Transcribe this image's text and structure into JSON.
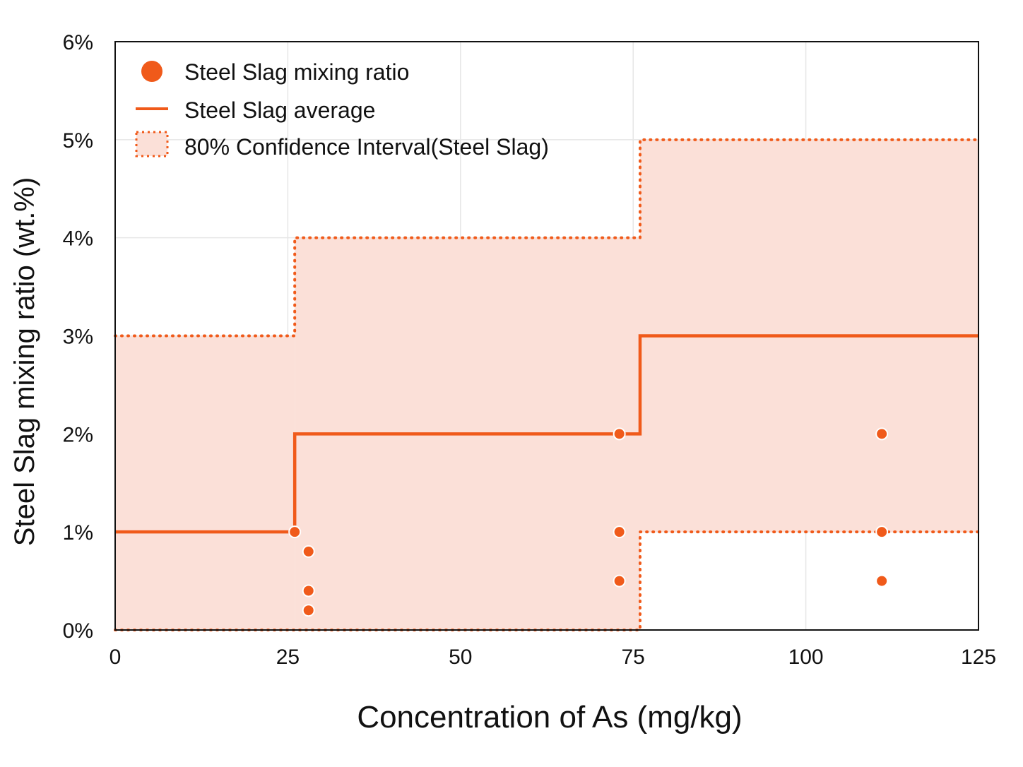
{
  "chart_data": {
    "type": "scatter",
    "xlabel": "Concentration of As (mg/kg)",
    "ylabel": "Steel Slag mixing ratio (wt.%)",
    "xlim": [
      0,
      125
    ],
    "ylim": [
      0,
      6
    ],
    "x_ticks": [
      0,
      25,
      50,
      75,
      100,
      125
    ],
    "x_tick_labels": [
      "0",
      "25",
      "50",
      "75",
      "100",
      "125"
    ],
    "y_ticks": [
      0,
      1,
      2,
      3,
      4,
      5,
      6
    ],
    "y_tick_labels": [
      "0%",
      "1%",
      "2%",
      "3%",
      "4%",
      "5%",
      "6%"
    ],
    "grid": true,
    "legend_position": "top-left",
    "legend": [
      {
        "label": "Steel Slag mixing ratio",
        "kind": "marker"
      },
      {
        "label": "Steel Slag average",
        "kind": "line"
      },
      {
        "label": "80% Confidence Interval(Steel Slag)",
        "kind": "dotted-box"
      }
    ],
    "colors": {
      "accent": "#f05a1a",
      "band_fill": "#fbe0d8"
    },
    "series": [
      {
        "name": "Steel Slag mixing ratio",
        "type": "scatter",
        "points": [
          {
            "x": 26,
            "y": 1.0
          },
          {
            "x": 28,
            "y": 0.8
          },
          {
            "x": 28,
            "y": 0.4
          },
          {
            "x": 28,
            "y": 0.2
          },
          {
            "x": 73,
            "y": 2.0
          },
          {
            "x": 73,
            "y": 1.0
          },
          {
            "x": 73,
            "y": 0.5
          },
          {
            "x": 111,
            "y": 2.0
          },
          {
            "x": 111,
            "y": 1.0
          },
          {
            "x": 111,
            "y": 0.5
          }
        ]
      },
      {
        "name": "Steel Slag average",
        "type": "step",
        "segments": [
          {
            "x0": 0,
            "x1": 26,
            "y": 1.0
          },
          {
            "x0": 26,
            "x1": 76,
            "y": 2.0
          },
          {
            "x0": 76,
            "x1": 125,
            "y": 3.0
          }
        ]
      },
      {
        "name": "80% Confidence Interval(Steel Slag)",
        "type": "band",
        "segments": [
          {
            "x0": 0,
            "x1": 26,
            "low": 0,
            "high": 3
          },
          {
            "x0": 26,
            "x1": 76,
            "low": 0,
            "high": 4
          },
          {
            "x0": 76,
            "x1": 125,
            "low": 1,
            "high": 5
          }
        ]
      }
    ]
  }
}
